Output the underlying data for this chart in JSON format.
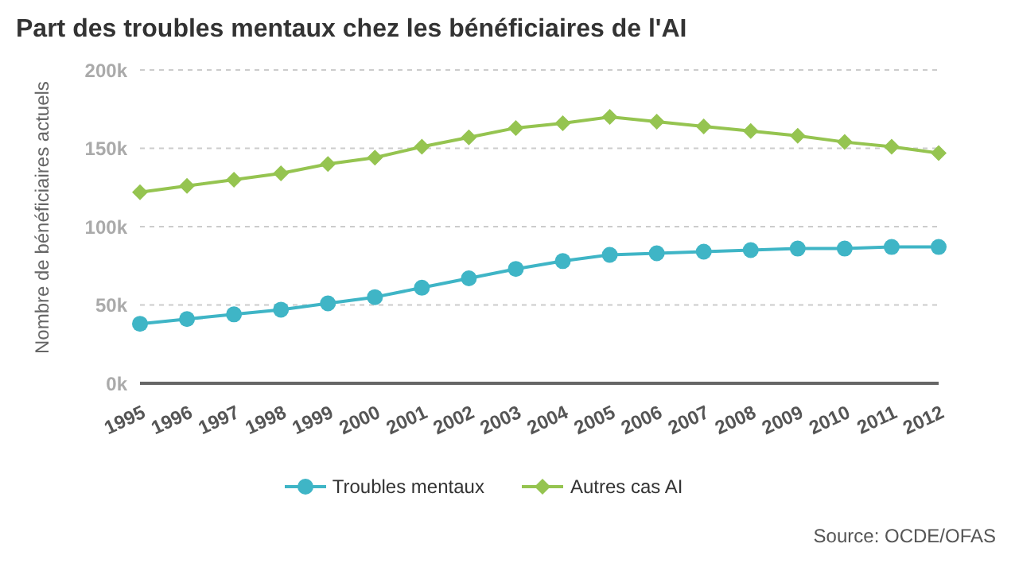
{
  "chart_data": {
    "type": "line",
    "title": "Part des troubles mentaux chez les bénéficiaires de l'AI",
    "ylabel": "Nombre de bénéficiaires actuels",
    "categories": [
      "1995",
      "1996",
      "1997",
      "1998",
      "1999",
      "2000",
      "2001",
      "2002",
      "2003",
      "2004",
      "2005",
      "2006",
      "2007",
      "2008",
      "2009",
      "2010",
      "2011",
      "2012"
    ],
    "series": [
      {
        "name": "Troubles mentaux",
        "color": "#3fb5c6",
        "marker": "circle",
        "values": [
          38,
          41,
          44,
          47,
          51,
          55,
          61,
          67,
          73,
          78,
          82,
          83,
          84,
          85,
          86,
          86,
          87,
          87
        ]
      },
      {
        "name": "Autres cas AI",
        "color": "#95c450",
        "marker": "diamond",
        "values": [
          122,
          126,
          130,
          134,
          140,
          144,
          151,
          157,
          163,
          166,
          170,
          167,
          164,
          161,
          158,
          154,
          151,
          147
        ]
      }
    ],
    "ylim": [
      0,
      200
    ],
    "yticks": [
      {
        "value": 0,
        "label": "0k"
      },
      {
        "value": 50,
        "label": "50k"
      },
      {
        "value": 100,
        "label": "100k"
      },
      {
        "value": 150,
        "label": "150k"
      },
      {
        "value": 200,
        "label": "200k"
      }
    ],
    "grid": "y",
    "legend": "bottom",
    "annotations": [
      "Source: OCDE/OFAS"
    ]
  }
}
